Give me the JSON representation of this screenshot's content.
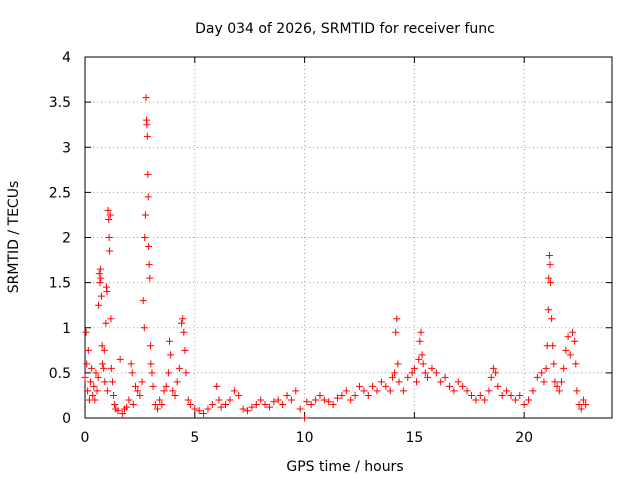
{
  "chart_data": {
    "type": "scatter",
    "title": "Day 034 of 2026, SRMTID for receiver func",
    "xlabel": "GPS time / hours",
    "ylabel": "SRMTID / TECUs",
    "xlim": [
      0,
      24
    ],
    "ylim": [
      0,
      4
    ],
    "xticks": [
      0,
      5,
      10,
      15,
      20
    ],
    "yticks": [
      0,
      0.5,
      1,
      1.5,
      2,
      2.5,
      3,
      3.5,
      4
    ],
    "ytick_labels": [
      "0",
      "0.5",
      "1",
      "1.5",
      "2",
      "2.5",
      "3",
      "3.5",
      "4"
    ],
    "grid": true,
    "legend": "none",
    "marker": "+",
    "marker_color": "#ff0000",
    "series": [
      {
        "name": "SRMTID",
        "points": [
          [
            0.0,
            0.45
          ],
          [
            0.05,
            0.95
          ],
          [
            0.08,
            0.6
          ],
          [
            0.12,
            0.3
          ],
          [
            0.15,
            0.75
          ],
          [
            0.2,
            0.2
          ],
          [
            0.25,
            0.4
          ],
          [
            0.3,
            0.55
          ],
          [
            0.35,
            0.25
          ],
          [
            0.4,
            0.35
          ],
          [
            0.45,
            0.2
          ],
          [
            0.5,
            0.5
          ],
          [
            0.55,
            0.3
          ],
          [
            0.6,
            0.45
          ],
          [
            0.62,
            1.25
          ],
          [
            0.65,
            1.6
          ],
          [
            0.68,
            1.5
          ],
          [
            0.7,
            1.65
          ],
          [
            0.72,
            1.55
          ],
          [
            0.75,
            1.35
          ],
          [
            0.78,
            0.8
          ],
          [
            0.8,
            0.6
          ],
          [
            0.85,
            0.55
          ],
          [
            0.88,
            0.75
          ],
          [
            0.9,
            0.4
          ],
          [
            0.95,
            1.05
          ],
          [
            0.98,
            1.45
          ],
          [
            1.0,
            1.4
          ],
          [
            1.02,
            0.3
          ],
          [
            1.05,
            2.3
          ],
          [
            1.08,
            2.2
          ],
          [
            1.1,
            2.0
          ],
          [
            1.12,
            1.85
          ],
          [
            1.15,
            2.25
          ],
          [
            1.18,
            1.1
          ],
          [
            1.2,
            0.55
          ],
          [
            1.25,
            0.4
          ],
          [
            1.3,
            0.25
          ],
          [
            1.35,
            0.15
          ],
          [
            1.4,
            0.1
          ],
          [
            1.5,
            0.08
          ],
          [
            1.6,
            0.65
          ],
          [
            1.7,
            0.05
          ],
          [
            1.8,
            0.1
          ],
          [
            1.9,
            0.12
          ],
          [
            2.0,
            0.2
          ],
          [
            2.1,
            0.6
          ],
          [
            2.15,
            0.5
          ],
          [
            2.2,
            0.15
          ],
          [
            2.3,
            0.35
          ],
          [
            2.4,
            0.3
          ],
          [
            2.5,
            0.25
          ],
          [
            2.6,
            0.4
          ],
          [
            2.65,
            1.3
          ],
          [
            2.7,
            1.0
          ],
          [
            2.72,
            2.0
          ],
          [
            2.75,
            2.25
          ],
          [
            2.78,
            3.55
          ],
          [
            2.8,
            3.3
          ],
          [
            2.82,
            3.25
          ],
          [
            2.84,
            3.12
          ],
          [
            2.86,
            2.7
          ],
          [
            2.88,
            2.45
          ],
          [
            2.9,
            1.9
          ],
          [
            2.92,
            1.7
          ],
          [
            2.95,
            1.55
          ],
          [
            2.98,
            0.8
          ],
          [
            3.0,
            0.6
          ],
          [
            3.05,
            0.5
          ],
          [
            3.1,
            0.35
          ],
          [
            3.2,
            0.15
          ],
          [
            3.3,
            0.1
          ],
          [
            3.4,
            0.2
          ],
          [
            3.5,
            0.15
          ],
          [
            3.6,
            0.3
          ],
          [
            3.7,
            0.35
          ],
          [
            3.8,
            0.5
          ],
          [
            3.85,
            0.85
          ],
          [
            3.9,
            0.7
          ],
          [
            4.0,
            0.3
          ],
          [
            4.1,
            0.25
          ],
          [
            4.2,
            0.4
          ],
          [
            4.3,
            0.55
          ],
          [
            4.4,
            1.05
          ],
          [
            4.45,
            1.1
          ],
          [
            4.5,
            0.95
          ],
          [
            4.55,
            0.75
          ],
          [
            4.6,
            0.5
          ],
          [
            4.7,
            0.2
          ],
          [
            4.8,
            0.15
          ],
          [
            5.0,
            0.1
          ],
          [
            5.2,
            0.08
          ],
          [
            5.4,
            0.05
          ],
          [
            5.6,
            0.1
          ],
          [
            5.8,
            0.15
          ],
          [
            6.0,
            0.35
          ],
          [
            6.1,
            0.2
          ],
          [
            6.2,
            0.12
          ],
          [
            6.4,
            0.15
          ],
          [
            6.6,
            0.2
          ],
          [
            6.8,
            0.3
          ],
          [
            7.0,
            0.25
          ],
          [
            7.2,
            0.1
          ],
          [
            7.4,
            0.08
          ],
          [
            7.6,
            0.12
          ],
          [
            7.8,
            0.15
          ],
          [
            8.0,
            0.2
          ],
          [
            8.2,
            0.15
          ],
          [
            8.4,
            0.12
          ],
          [
            8.6,
            0.18
          ],
          [
            8.8,
            0.2
          ],
          [
            9.0,
            0.15
          ],
          [
            9.2,
            0.25
          ],
          [
            9.4,
            0.2
          ],
          [
            9.6,
            0.3
          ],
          [
            9.8,
            0.1
          ],
          [
            10.0,
            0.0
          ],
          [
            10.1,
            0.18
          ],
          [
            10.3,
            0.15
          ],
          [
            10.5,
            0.2
          ],
          [
            10.7,
            0.25
          ],
          [
            10.9,
            0.2
          ],
          [
            11.1,
            0.18
          ],
          [
            11.3,
            0.15
          ],
          [
            11.5,
            0.22
          ],
          [
            11.7,
            0.25
          ],
          [
            11.9,
            0.3
          ],
          [
            12.1,
            0.2
          ],
          [
            12.3,
            0.25
          ],
          [
            12.5,
            0.35
          ],
          [
            12.7,
            0.3
          ],
          [
            12.9,
            0.25
          ],
          [
            13.1,
            0.35
          ],
          [
            13.3,
            0.3
          ],
          [
            13.5,
            0.4
          ],
          [
            13.7,
            0.35
          ],
          [
            13.9,
            0.3
          ],
          [
            14.0,
            0.45
          ],
          [
            14.1,
            0.5
          ],
          [
            14.15,
            0.95
          ],
          [
            14.2,
            1.1
          ],
          [
            14.25,
            0.6
          ],
          [
            14.3,
            0.4
          ],
          [
            14.5,
            0.3
          ],
          [
            14.7,
            0.45
          ],
          [
            14.9,
            0.5
          ],
          [
            15.0,
            0.55
          ],
          [
            15.1,
            0.4
          ],
          [
            15.2,
            0.65
          ],
          [
            15.25,
            0.85
          ],
          [
            15.3,
            0.95
          ],
          [
            15.35,
            0.7
          ],
          [
            15.4,
            0.6
          ],
          [
            15.5,
            0.5
          ],
          [
            15.6,
            0.45
          ],
          [
            15.8,
            0.55
          ],
          [
            16.0,
            0.5
          ],
          [
            16.2,
            0.4
          ],
          [
            16.4,
            0.45
          ],
          [
            16.6,
            0.35
          ],
          [
            16.8,
            0.3
          ],
          [
            17.0,
            0.4
          ],
          [
            17.2,
            0.35
          ],
          [
            17.4,
            0.3
          ],
          [
            17.6,
            0.25
          ],
          [
            17.8,
            0.2
          ],
          [
            18.0,
            0.25
          ],
          [
            18.2,
            0.2
          ],
          [
            18.4,
            0.3
          ],
          [
            18.5,
            0.45
          ],
          [
            18.6,
            0.55
          ],
          [
            18.7,
            0.5
          ],
          [
            18.8,
            0.35
          ],
          [
            19.0,
            0.25
          ],
          [
            19.2,
            0.3
          ],
          [
            19.4,
            0.25
          ],
          [
            19.6,
            0.2
          ],
          [
            19.8,
            0.25
          ],
          [
            20.0,
            0.15
          ],
          [
            20.2,
            0.2
          ],
          [
            20.4,
            0.3
          ],
          [
            20.6,
            0.45
          ],
          [
            20.8,
            0.5
          ],
          [
            20.9,
            0.4
          ],
          [
            21.0,
            0.55
          ],
          [
            21.05,
            0.8
          ],
          [
            21.1,
            1.2
          ],
          [
            21.12,
            1.55
          ],
          [
            21.15,
            1.8
          ],
          [
            21.18,
            1.7
          ],
          [
            21.2,
            1.5
          ],
          [
            21.25,
            1.1
          ],
          [
            21.3,
            0.8
          ],
          [
            21.35,
            0.6
          ],
          [
            21.4,
            0.4
          ],
          [
            21.5,
            0.35
          ],
          [
            21.6,
            0.3
          ],
          [
            21.7,
            0.4
          ],
          [
            21.8,
            0.55
          ],
          [
            21.9,
            0.75
          ],
          [
            22.0,
            0.9
          ],
          [
            22.1,
            0.7
          ],
          [
            22.2,
            0.95
          ],
          [
            22.3,
            0.85
          ],
          [
            22.35,
            0.6
          ],
          [
            22.4,
            0.3
          ],
          [
            22.5,
            0.15
          ],
          [
            22.6,
            0.1
          ],
          [
            22.7,
            0.2
          ],
          [
            22.8,
            0.15
          ]
        ]
      }
    ]
  }
}
